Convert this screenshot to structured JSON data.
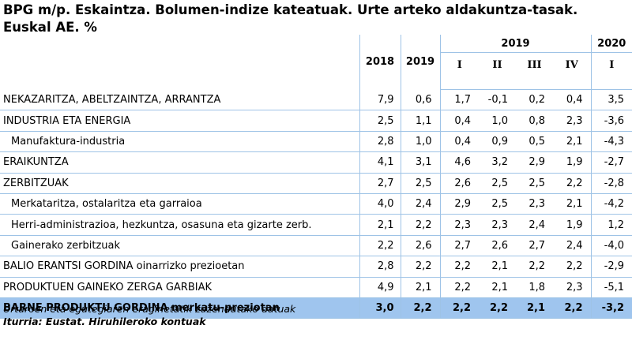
{
  "title_line1": "BPG m/p. Eskaintza. Bolumen-indize kateatuak. Urte arteko aldakuntza-tasak.",
  "title_line2": "Euskal AE. %",
  "header": {
    "year_2018": "2018",
    "year_2019": "2019",
    "group_2019": "2019",
    "group_2020": "2020",
    "q1": "I",
    "q2": "II",
    "q3": "III",
    "q4": "IV",
    "q2020": "I"
  },
  "rows": [
    {
      "label": "NEKAZARITZA, ABELTZAINTZA, ARRANTZA",
      "values": [
        "7,9",
        "0,6",
        "1,7",
        "-0,1",
        "0,2",
        "0,4",
        "3,5"
      ]
    },
    {
      "label": "INDUSTRIA ETA ENERGIA",
      "values": [
        "2,5",
        "1,1",
        "0,4",
        "1,0",
        "0,8",
        "2,3",
        "-3,6"
      ]
    },
    {
      "label": "Manufaktura-industria",
      "values": [
        "2,8",
        "1,0",
        "0,4",
        "0,9",
        "0,5",
        "2,1",
        "-4,3"
      ]
    },
    {
      "label": "ERAIKUNTZA",
      "values": [
        "4,1",
        "3,1",
        "4,6",
        "3,2",
        "2,9",
        "1,9",
        "-2,7"
      ]
    },
    {
      "label": "ZERBITZUAK",
      "values": [
        "2,7",
        "2,5",
        "2,6",
        "2,5",
        "2,5",
        "2,2",
        "-2,8"
      ]
    },
    {
      "label": "Merkataritza, ostalaritza eta garraioa",
      "values": [
        "4,0",
        "2,4",
        "2,9",
        "2,5",
        "2,3",
        "2,1",
        "-4,2"
      ]
    },
    {
      "label": "Herri-administrazioa, hezkuntza, osasuna eta gizarte zerb.",
      "values": [
        "2,1",
        "2,2",
        "2,3",
        "2,3",
        "2,4",
        "1,9",
        "1,2"
      ]
    },
    {
      "label": "Gainerako zerbitzuak",
      "values": [
        "2,2",
        "2,6",
        "2,7",
        "2,6",
        "2,7",
        "2,4",
        "-4,0"
      ]
    },
    {
      "label": "BALIO ERANTSI GORDINA oinarrizko prezioetan",
      "values": [
        "2,8",
        "2,2",
        "2,2",
        "2,1",
        "2,2",
        "2,2",
        "-2,9"
      ]
    },
    {
      "label": "PRODUKTUEN GAINEKO ZERGA GARBIAK",
      "values": [
        "4,9",
        "2,1",
        "2,2",
        "2,1",
        "1,8",
        "2,3",
        "-5,1"
      ]
    }
  ],
  "total": {
    "label": "BARNE PRODUKTU GORDINA merkatu-preziotan",
    "values": [
      "3,0",
      "2,2",
      "2,2",
      "2,2",
      "2,1",
      "2,2",
      "-3,2"
    ]
  },
  "footnote": "Urtaroen eta egutegiaren eraginetatik zuzendutako datuak",
  "source": "Iturria: Eustat. Hiruhileroko kontuak",
  "colors": {
    "total_row_bg": "#9fc5ee",
    "rule": "#9ec3e6"
  }
}
